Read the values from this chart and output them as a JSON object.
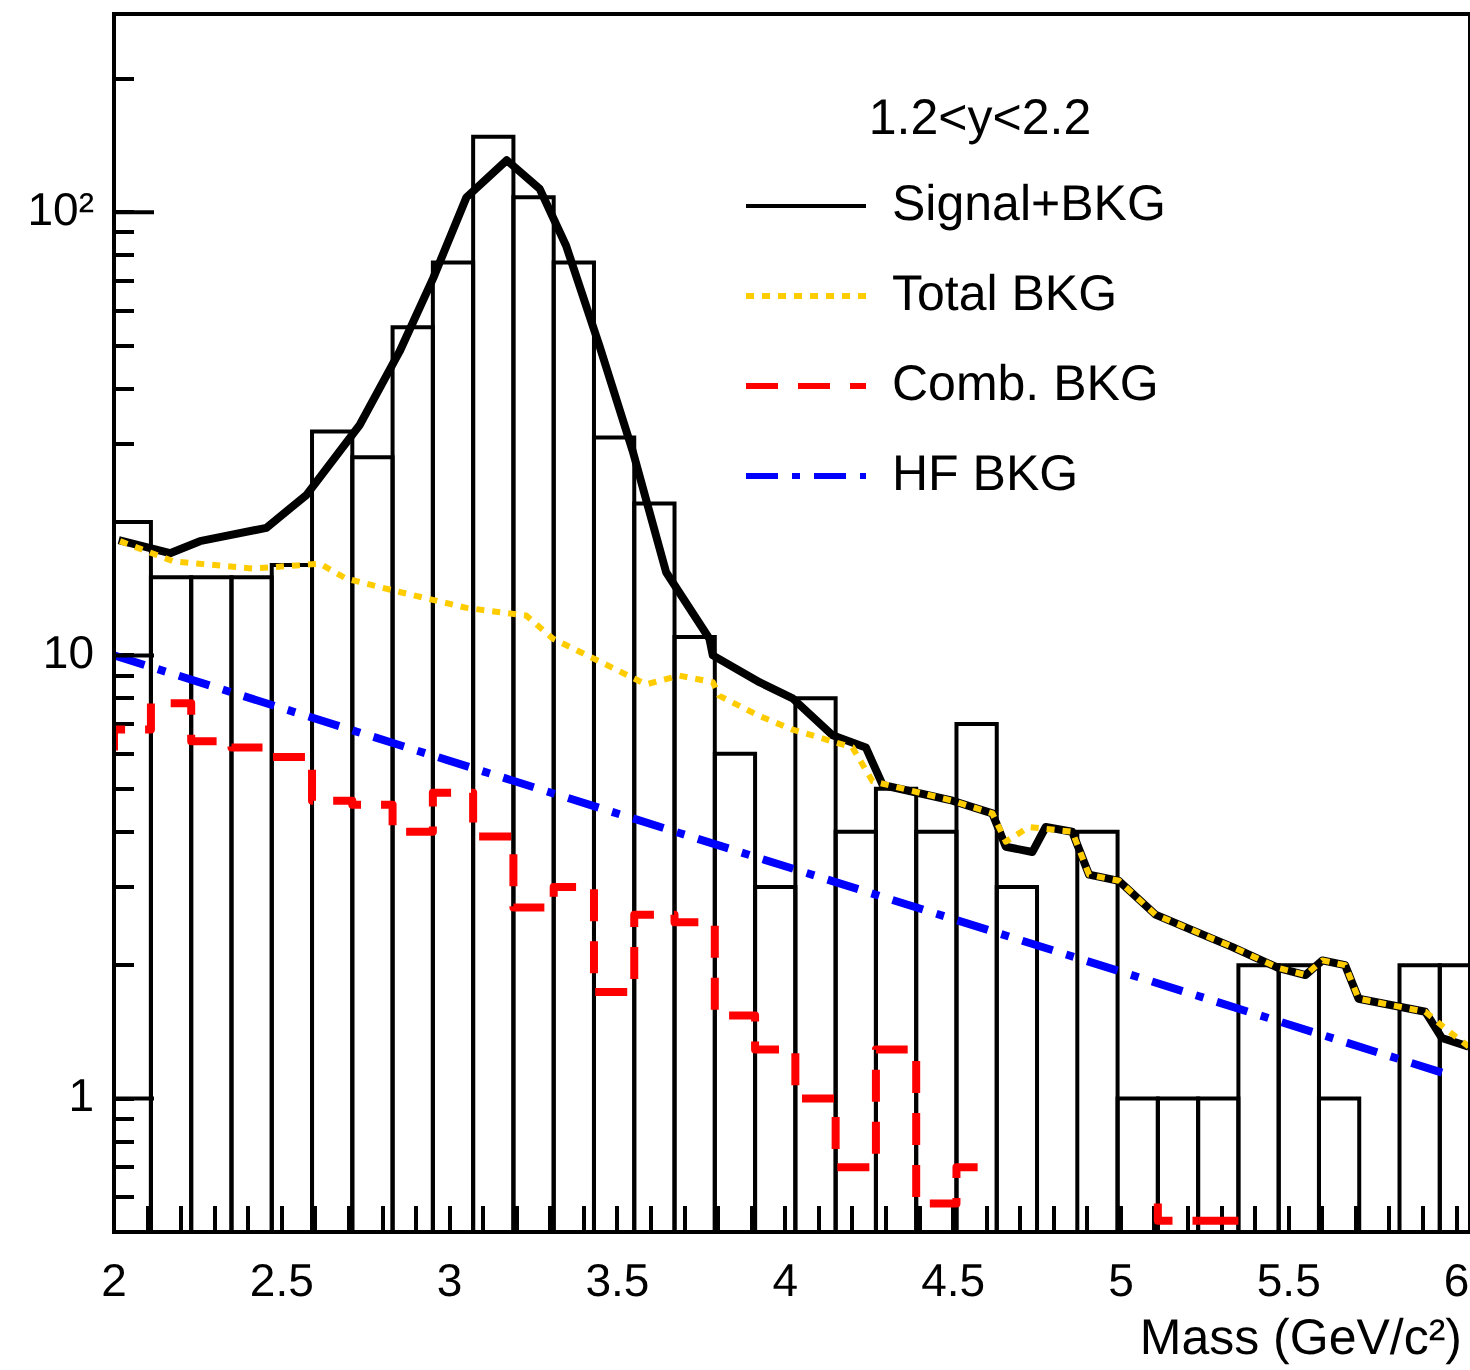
{
  "chart_data": {
    "type": "histogram",
    "xlabel": "Mass (GeV/c²)",
    "legend_title": "1.2<y<2.2",
    "legend": "top right",
    "log": true,
    "bins": [
      2.0,
      2.11,
      2.23,
      2.35,
      2.47,
      2.59,
      2.71,
      2.83,
      2.95,
      3.07,
      3.19,
      3.31,
      3.43,
      3.55,
      3.67,
      3.79,
      3.91,
      4.03,
      4.15,
      4.27,
      4.39,
      4.51,
      4.63,
      4.75,
      4.87,
      4.99,
      5.11,
      5.23,
      5.35,
      5.47,
      5.59,
      5.71,
      5.83,
      5.95,
      6.04
    ],
    "values": [
      20,
      15,
      15,
      15,
      16,
      32,
      28,
      55,
      77,
      148,
      108,
      77,
      31,
      22,
      11,
      6,
      3,
      8,
      4,
      5,
      4,
      7,
      3,
      null,
      4,
      1,
      1,
      1,
      2,
      2,
      1,
      null,
      2,
      2
    ],
    "color": "#000000",
    "xlim": [
      2,
      6.04
    ],
    "xticks": [
      2,
      {
        "value": 2.1,
        "label": null
      },
      {
        "value": 2.2,
        "label": null
      },
      {
        "value": 2.3,
        "label": null
      },
      {
        "value": 2.4,
        "label": null
      },
      2.5,
      {
        "value": 2.6,
        "label": null
      },
      {
        "value": 2.7,
        "label": null
      },
      {
        "value": 2.8,
        "label": null
      },
      {
        "value": 2.9,
        "label": null
      },
      3,
      {
        "value": 3.1,
        "label": null
      },
      {
        "value": 3.2,
        "label": null
      },
      {
        "value": 3.3,
        "label": null
      },
      {
        "value": 3.4,
        "label": null
      },
      3.5,
      {
        "value": 3.6,
        "label": null
      },
      {
        "value": 3.7,
        "label": null
      },
      {
        "value": 3.8,
        "label": null
      },
      {
        "value": 3.9,
        "label": null
      },
      4,
      {
        "value": 4.1,
        "label": null
      },
      {
        "value": 4.2,
        "label": null
      },
      {
        "value": 4.3,
        "label": null
      },
      {
        "value": 4.4,
        "label": null
      },
      4.5,
      {
        "value": 4.6,
        "label": null
      },
      {
        "value": 4.7,
        "label": null
      },
      {
        "value": 4.8,
        "label": null
      },
      {
        "value": 4.9,
        "label": null
      },
      5,
      {
        "value": 5.1,
        "label": null
      },
      {
        "value": 5.2,
        "label": null
      },
      {
        "value": 5.3,
        "label": null
      },
      {
        "value": 5.4,
        "label": null
      },
      5.5,
      {
        "value": 5.6,
        "label": null
      },
      {
        "value": 5.7,
        "label": null
      },
      {
        "value": 5.8,
        "label": null
      },
      {
        "value": 5.9,
        "label": null
      },
      6
    ],
    "ylim": [
      0.5,
      280
    ],
    "yticks": [
      {
        "value": 0.6,
        "label": null
      },
      {
        "value": 0.7,
        "label": null
      },
      {
        "value": 0.8,
        "label": null
      },
      {
        "value": 0.9,
        "label": null
      },
      1,
      {
        "value": 2,
        "label": null
      },
      {
        "value": 3,
        "label": null
      },
      {
        "value": 4,
        "label": null
      },
      {
        "value": 5,
        "label": null
      },
      {
        "value": 6,
        "label": null
      },
      {
        "value": 7,
        "label": null
      },
      {
        "value": 8,
        "label": null
      },
      {
        "value": 9,
        "label": null
      },
      10,
      {
        "value": 20,
        "label": null
      },
      {
        "value": 30,
        "label": null
      },
      {
        "value": 40,
        "label": null
      },
      {
        "value": 50,
        "label": null
      },
      {
        "value": 60,
        "label": null
      },
      {
        "value": 70,
        "label": null
      },
      {
        "value": 80,
        "label": null
      },
      {
        "value": 90,
        "label": null
      },
      {
        "value": 100,
        "label": "10²"
      },
      {
        "value": 200,
        "label": null
      }
    ],
    "series": [
      {
        "name": "Signal+BKG",
        "type": "line",
        "color": "#000000",
        "line_style": "solid",
        "x": [
          2.014,
          2.167,
          2.256,
          2.454,
          2.573,
          2.732,
          2.851,
          2.951,
          3.05,
          3.17,
          3.268,
          3.347,
          3.446,
          3.546,
          3.645,
          3.774,
          3.784,
          3.923,
          4.022,
          4.141,
          4.24,
          4.29,
          4.498,
          4.617,
          4.657,
          4.736,
          4.776,
          4.855,
          4.905,
          4.994,
          5.103,
          5.212,
          5.331,
          5.47,
          5.55,
          5.6,
          5.668,
          5.708,
          5.907,
          5.956,
          6.036
        ],
        "values": [
          18.2,
          17.0,
          18.1,
          19.4,
          23.0,
          33.1,
          48.5,
          71,
          108,
          131,
          113,
          84,
          50,
          28.8,
          15.4,
          10.9,
          10.0,
          8.7,
          8.0,
          6.6,
          6.2,
          5.1,
          4.7,
          4.4,
          3.7,
          3.6,
          4.1,
          4.0,
          3.2,
          3.1,
          2.6,
          2.4,
          2.2,
          1.97,
          1.9,
          2.05,
          2.0,
          1.68,
          1.57,
          1.37,
          1.31
        ]
      },
      {
        "name": "Total BKG",
        "type": "line",
        "color": "#ffcc00",
        "line_style": "dotted",
        "x": [
          2.018,
          2.177,
          2.415,
          2.613,
          2.692,
          2.851,
          3.05,
          3.228,
          3.308,
          3.446,
          3.585,
          3.685,
          3.784,
          3.804,
          3.923,
          4.022,
          4.2,
          4.26,
          4.498,
          4.617,
          4.657,
          4.726,
          4.855,
          4.905,
          4.994,
          5.103,
          5.212,
          5.331,
          5.47,
          5.55,
          5.6,
          5.668,
          5.708,
          5.907,
          5.966,
          6.036
        ],
        "values": [
          18.1,
          16.3,
          15.7,
          16.1,
          14.9,
          13.9,
          12.8,
          12.3,
          10.9,
          9.7,
          8.6,
          9.0,
          8.7,
          8.1,
          7.3,
          6.8,
          6.2,
          5.2,
          4.7,
          4.4,
          3.8,
          4.1,
          4.0,
          3.2,
          3.1,
          2.6,
          2.4,
          2.2,
          1.97,
          1.9,
          2.05,
          2.0,
          1.68,
          1.57,
          1.44,
          1.31
        ]
      },
      {
        "name": "Comb. BKG",
        "type": "step",
        "color": "#ff0000",
        "line_style": "dashed",
        "x": [
          2.0,
          2.11,
          2.23,
          2.35,
          2.47,
          2.59,
          2.71,
          2.83,
          2.95,
          3.07,
          3.19,
          3.31,
          3.43,
          3.55,
          3.67,
          3.79,
          3.91,
          4.03,
          4.15,
          4.27,
          4.39,
          4.51,
          4.63,
          4.75,
          4.87,
          4.99,
          5.11,
          5.23,
          5.35
        ],
        "values": [
          6.1,
          6.8,
          7.8,
          6.4,
          6.2,
          5.9,
          4.7,
          4.6,
          4.0,
          4.9,
          3.9,
          2.7,
          3.0,
          1.74,
          2.6,
          2.5,
          1.54,
          1.29,
          1.0,
          0.7,
          1.29,
          0.58,
          0.7,
          null,
          null,
          null,
          0.58,
          0.53,
          0.53
        ]
      },
      {
        "name": "HF BKG",
        "type": "line",
        "color": "#0000ff",
        "line_style": "dashdot",
        "x": [
          2.0,
          5.98
        ],
        "values": [
          10.0,
          1.13
        ]
      }
    ]
  }
}
